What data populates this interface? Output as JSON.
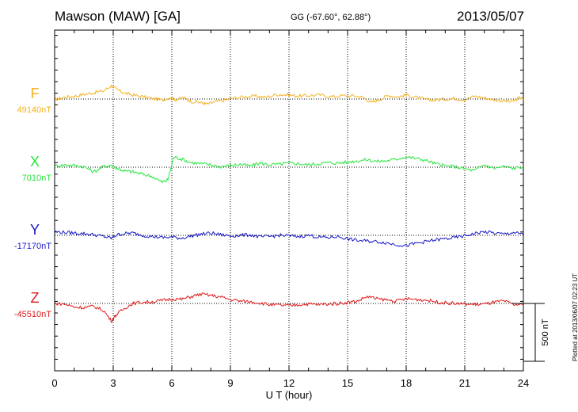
{
  "header": {
    "station": "Mawson (MAW)  [GA]",
    "coords": "GG (-67.60°,  62.88°)",
    "date": "2013/05/07"
  },
  "plotted_note": "Plotted at 2013/06/07 02:23 UT",
  "colors": {
    "F": "#f5b120",
    "X": "#23e63a",
    "Y": "#1616c8",
    "Z": "#e01818"
  },
  "chart_data": {
    "type": "line",
    "title": "Mawson (MAW)  [GA]",
    "xlabel": "U T (hour)",
    "x_ticks": [
      "0",
      "3",
      "6",
      "9",
      "12",
      "15",
      "18",
      "21",
      "24"
    ],
    "xlim": [
      0,
      24
    ],
    "scale_bar_label": "500 nT",
    "scale_bar_nT": 500,
    "series": [
      {
        "name": "F",
        "baseline_label": "49140nT",
        "baseline_nT": 49140,
        "color": "#f5b120",
        "hours": [
          0,
          0.5,
          1,
          1.5,
          2,
          2.5,
          2.9,
          3.2,
          3.6,
          4,
          4.5,
          5,
          5.5,
          5.9,
          6.2,
          6.6,
          7,
          7.5,
          7.8,
          8.2,
          8.7,
          9.2,
          9.8,
          10.3,
          10.8,
          11.4,
          12,
          12.5,
          13,
          13.6,
          14.2,
          14.8,
          15.4,
          15.8,
          16.2,
          16.6,
          17.1,
          17.6,
          18,
          18.5,
          19,
          19.5,
          20,
          20.5,
          21,
          21.5,
          22,
          22.5,
          23,
          23.4,
          23.8,
          24
        ],
        "values": [
          -5,
          15,
          25,
          40,
          55,
          70,
          115,
          80,
          50,
          35,
          20,
          5,
          -10,
          15,
          -5,
          10,
          -20,
          -30,
          -45,
          -25,
          -10,
          10,
          20,
          25,
          15,
          40,
          35,
          25,
          30,
          35,
          20,
          30,
          25,
          15,
          -30,
          -5,
          30,
          20,
          35,
          15,
          -5,
          -10,
          0,
          5,
          -5,
          25,
          10,
          -5,
          -15,
          -25,
          10,
          0
        ]
      },
      {
        "name": "X",
        "baseline_label": "7010nT",
        "baseline_nT": 7010,
        "color": "#23e63a",
        "hours": [
          0,
          0.5,
          1,
          1.5,
          2,
          2.5,
          2.9,
          3.2,
          3.6,
          4,
          4.5,
          5,
          5.5,
          5.8,
          6.1,
          6.5,
          7,
          7.5,
          8,
          8.5,
          9,
          9.5,
          10,
          10.5,
          11,
          11.5,
          12,
          12.5,
          13,
          13.5,
          14,
          14.5,
          15,
          15.5,
          16,
          16.5,
          17,
          17.5,
          18,
          18.5,
          19,
          19.5,
          20,
          20.5,
          21,
          21.5,
          22,
          22.5,
          23,
          23.5,
          24
        ],
        "values": [
          10,
          20,
          15,
          5,
          -40,
          5,
          20,
          -10,
          -35,
          -40,
          -60,
          -80,
          -130,
          -110,
          90,
          70,
          40,
          30,
          20,
          5,
          15,
          25,
          10,
          35,
          20,
          25,
          35,
          30,
          20,
          30,
          40,
          35,
          45,
          55,
          65,
          50,
          55,
          70,
          90,
          75,
          60,
          30,
          10,
          5,
          -15,
          -30,
          20,
          -10,
          5,
          -10,
          5
        ]
      },
      {
        "name": "Y",
        "baseline_label": "-17170nT",
        "baseline_nT": -17170,
        "color": "#1616c8",
        "hours": [
          0,
          0.5,
          1,
          1.5,
          2,
          2.5,
          2.9,
          3.2,
          3.6,
          4,
          4.5,
          5,
          5.5,
          6,
          6.5,
          7,
          7.5,
          8,
          8.5,
          9,
          9.5,
          10,
          10.5,
          11,
          11.5,
          12,
          12.5,
          13,
          13.5,
          14,
          14.5,
          15,
          15.5,
          16,
          16.5,
          17,
          17.5,
          18,
          18.5,
          19,
          19.5,
          20,
          20.5,
          21,
          21.5,
          22,
          22.5,
          23,
          23.5,
          24
        ],
        "values": [
          30,
          25,
          20,
          15,
          5,
          -10,
          -25,
          5,
          15,
          20,
          0,
          -10,
          -20,
          -15,
          -25,
          -5,
          10,
          20,
          5,
          -5,
          0,
          5,
          -15,
          -10,
          0,
          -5,
          -10,
          0,
          -15,
          -20,
          -10,
          -30,
          -45,
          -50,
          -55,
          -65,
          -80,
          -90,
          -70,
          -55,
          -40,
          -30,
          -20,
          -5,
          15,
          30,
          20,
          10,
          25,
          5
        ]
      },
      {
        "name": "Z",
        "baseline_label": "-45510nT",
        "baseline_nT": -45510,
        "color": "#e01818",
        "hours": [
          0,
          0.5,
          1,
          1.5,
          2,
          2.5,
          2.9,
          3.2,
          3.6,
          4,
          4.5,
          5,
          5.5,
          6,
          6.5,
          7,
          7.5,
          8,
          8.5,
          9,
          9.5,
          10,
          10.5,
          11,
          11.5,
          12,
          12.5,
          13,
          13.5,
          14,
          14.5,
          15,
          15.5,
          16,
          16.5,
          17,
          17.5,
          18,
          18.5,
          19,
          19.5,
          20,
          20.5,
          21,
          21.5,
          22,
          22.5,
          23,
          23.5,
          24
        ],
        "values": [
          0,
          -5,
          -30,
          -35,
          -25,
          -60,
          -150,
          -90,
          -40,
          0,
          10,
          15,
          25,
          40,
          35,
          60,
          80,
          70,
          55,
          35,
          20,
          15,
          5,
          -10,
          -15,
          -20,
          -10,
          -5,
          -10,
          -5,
          0,
          10,
          20,
          60,
          40,
          30,
          20,
          40,
          35,
          30,
          15,
          5,
          0,
          -5,
          -10,
          -5,
          10,
          20,
          -10,
          -10
        ]
      }
    ]
  }
}
